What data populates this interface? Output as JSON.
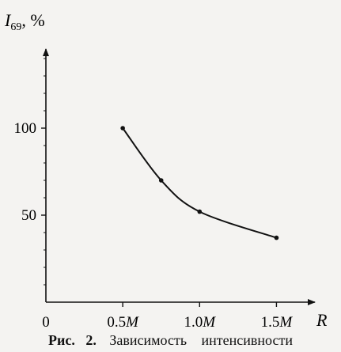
{
  "chart_data": {
    "type": "line",
    "x": [
      0.5,
      0.75,
      1.0,
      1.5
    ],
    "y": [
      100,
      70,
      52,
      37
    ],
    "xlim": [
      0,
      1.75
    ],
    "ylim": [
      0,
      150
    ],
    "x_ticks": [
      0,
      0.5,
      1.0,
      1.5
    ],
    "x_tick_labels": [
      {
        "num": "0",
        "unit": ""
      },
      {
        "num": "0.5",
        "unit": "M"
      },
      {
        "num": "1.0",
        "unit": "M"
      },
      {
        "num": "1.5",
        "unit": "M"
      }
    ],
    "y_ticks": [
      50,
      100
    ],
    "y_tick_labels": [
      "50",
      "100"
    ],
    "ylabel": {
      "main": "I",
      "sub": "69",
      "unit": ",  %"
    },
    "xlabel": "R",
    "grid": false,
    "legend": "none",
    "line_color": "#111111"
  },
  "caption": {
    "label": "Рис.",
    "number": "2.",
    "text": "Зависимость интенсивности"
  }
}
